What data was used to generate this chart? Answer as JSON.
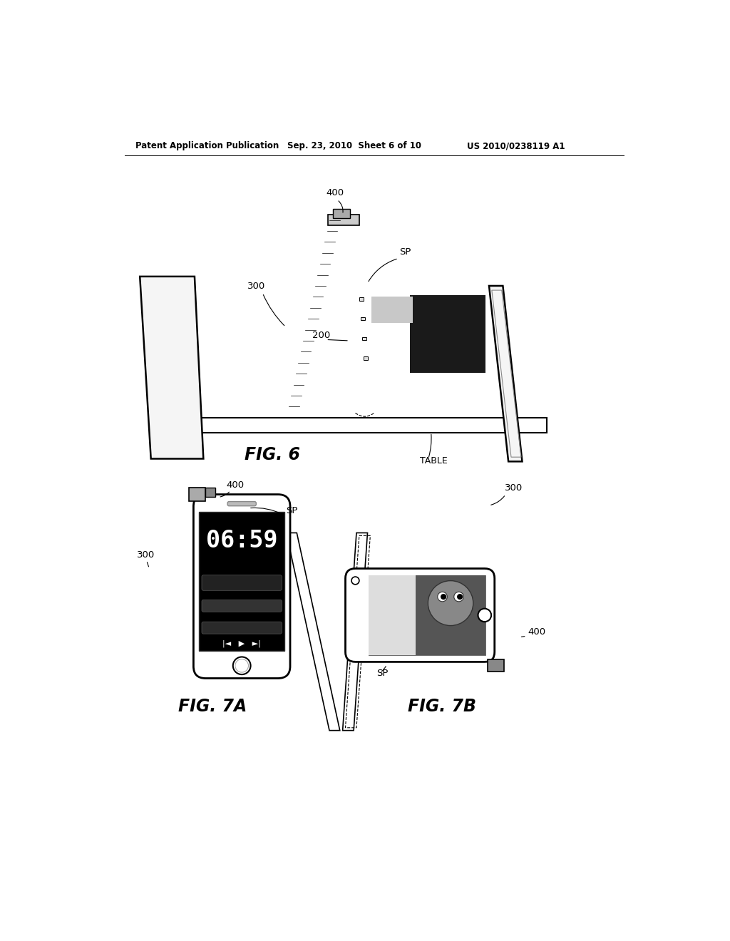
{
  "bg_color": "#ffffff",
  "header_text": "Patent Application Publication",
  "header_date": "Sep. 23, 2010  Sheet 6 of 10",
  "header_patent": "US 2010/0238119 A1",
  "fig6_title": "FIG. 6",
  "fig7a_title": "FIG. 7A",
  "fig7b_title": "FIG. 7B",
  "label_400_fig6": "400",
  "label_300_fig6": "300",
  "label_200_fig6": "200",
  "label_SP_fig6": "SP",
  "label_TABLE": "TABLE",
  "label_400_fig7a": "400",
  "label_300_fig7a": "300",
  "label_SP_fig7a": "SP",
  "label_300_fig7b": "300",
  "label_400_fig7b": "400",
  "label_SP_fig7b": "SP",
  "line_color": "#000000",
  "text_color": "#000000"
}
